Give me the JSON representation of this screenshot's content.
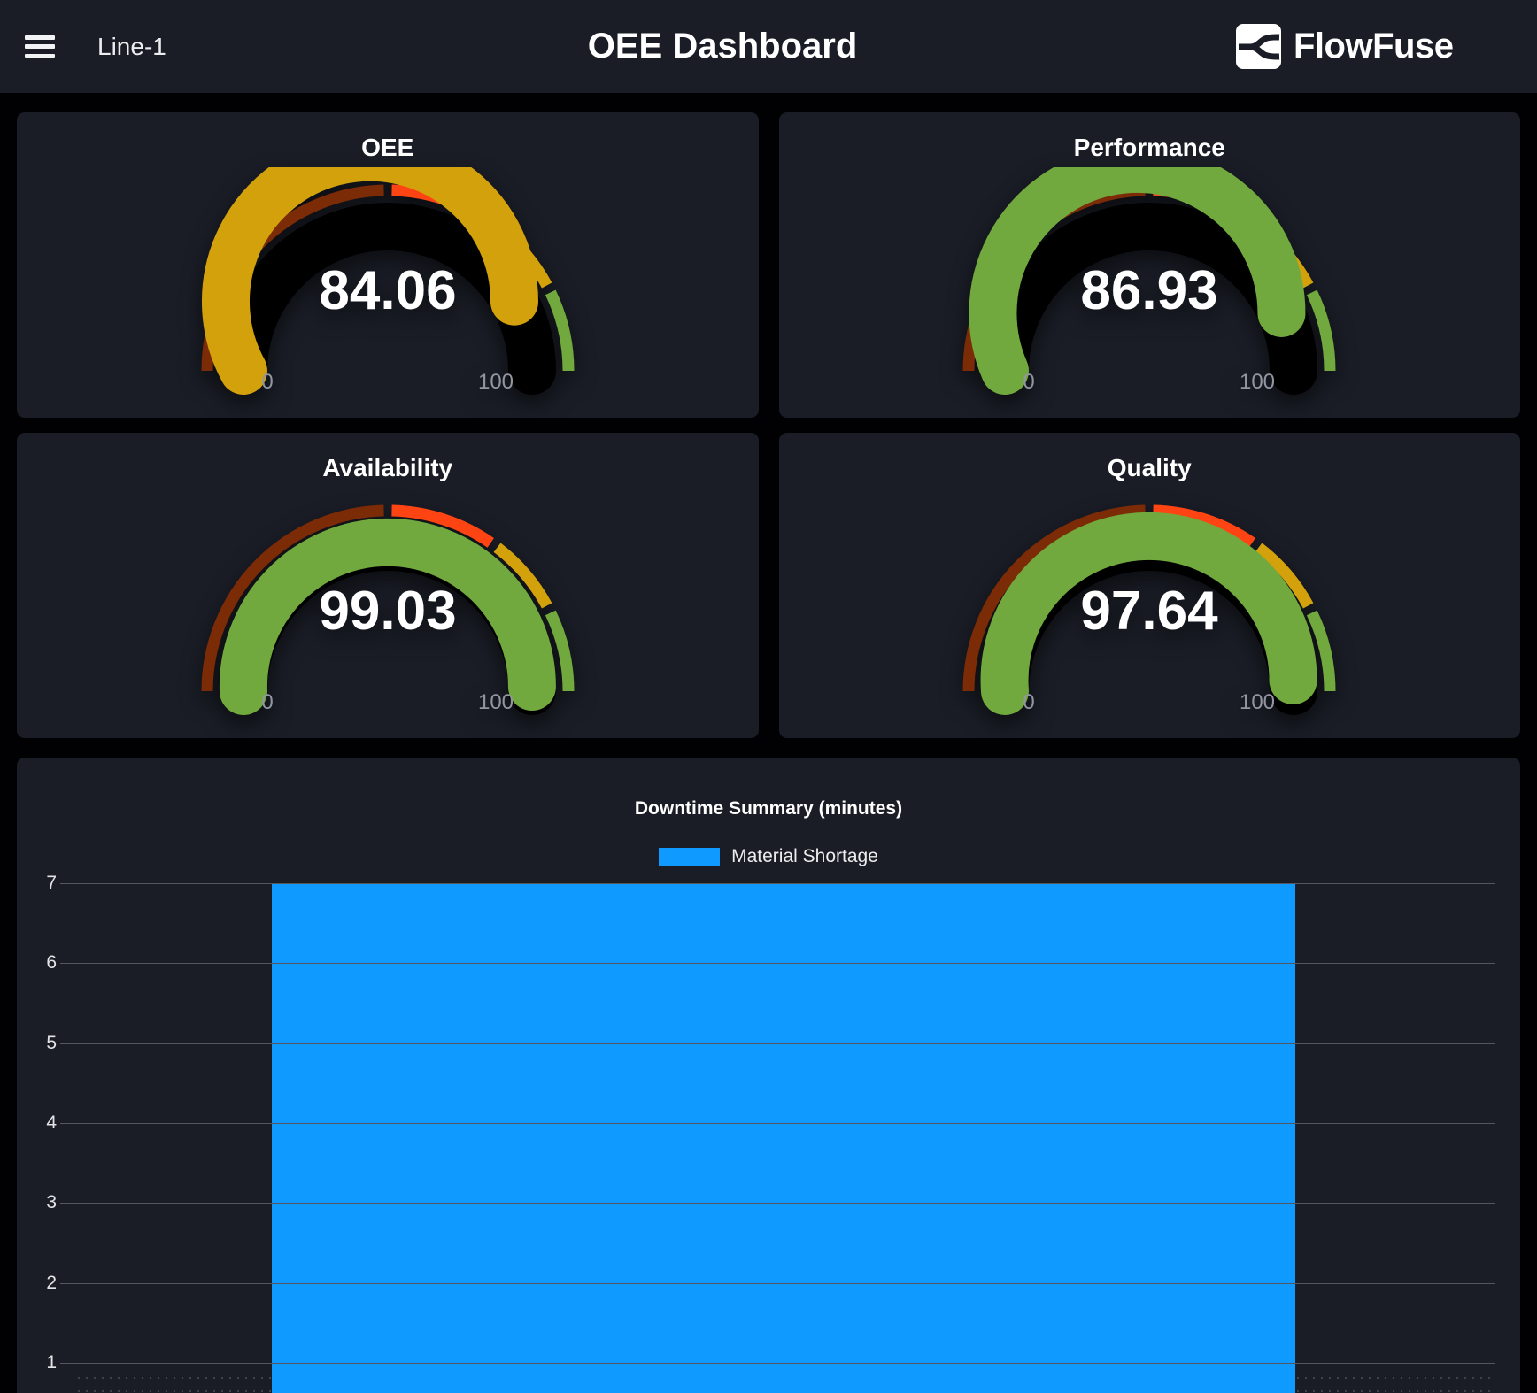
{
  "header": {
    "device_label": "Line-1",
    "title": "OEE Dashboard",
    "brand_name": "FlowFuse"
  },
  "gauge_config": {
    "min": 0,
    "max": 100,
    "min_label": "0",
    "max_label": "100",
    "track_color": "#000000",
    "segments": [
      {
        "from": 0,
        "to": 50,
        "color": "#7b2b06"
      },
      {
        "from": 50,
        "to": 70,
        "color": "#fe4413"
      },
      {
        "from": 70,
        "to": 85,
        "color": "#d3a10c"
      },
      {
        "from": 85,
        "to": 100,
        "color": "#72a93e"
      }
    ]
  },
  "gauges": [
    {
      "title": "OEE",
      "value": "84.06"
    },
    {
      "title": "Performance",
      "value": "86.93"
    },
    {
      "title": "Availability",
      "value": "99.03"
    },
    {
      "title": "Quality",
      "value": "97.64"
    }
  ],
  "chart_data": {
    "type": "bar",
    "title": "Downtime Summary (minutes)",
    "categories": [
      ""
    ],
    "series": [
      {
        "name": "Material Shortage",
        "color": "#0f9aff",
        "values": [
          7
        ]
      }
    ],
    "ylim": [
      0,
      7
    ],
    "yticks_visible": [
      7,
      6,
      5,
      4,
      3,
      2,
      1
    ],
    "grid": true,
    "legend_position": "top"
  }
}
